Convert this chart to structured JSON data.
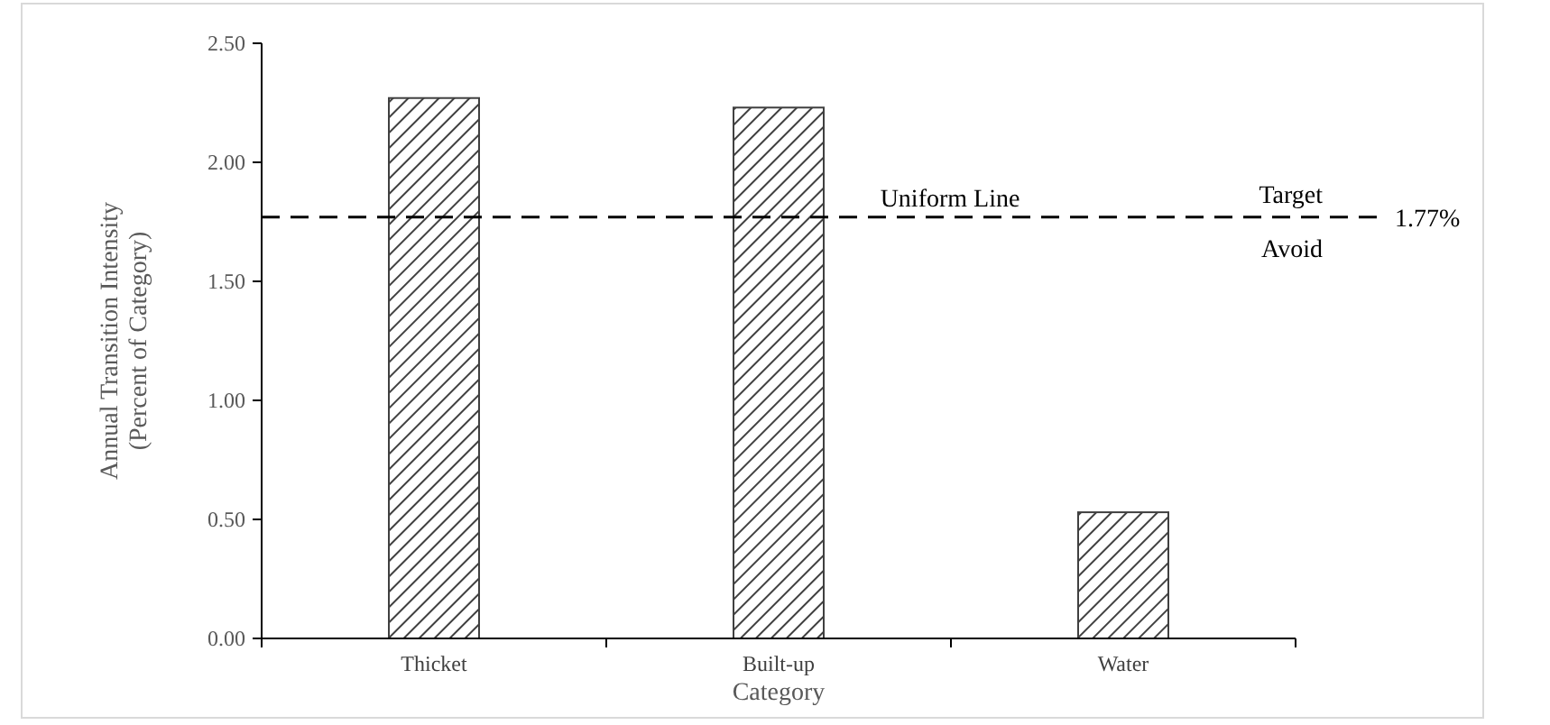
{
  "chart_data": {
    "type": "bar",
    "xlabel": "Category",
    "ylabel": "Annual Transition Intensity\n(Percent of Category)",
    "categories": [
      "Thicket",
      "Built-up",
      "Water"
    ],
    "values": [
      2.27,
      2.23,
      0.53
    ],
    "color": "#404040",
    "ylim": [
      0,
      2.5
    ],
    "yticks": [
      {
        "value": 0,
        "label": "0.00"
      },
      {
        "value": 0.5,
        "label": "0.50"
      },
      {
        "value": 1,
        "label": "1.00"
      },
      {
        "value": 1.5,
        "label": "1.50"
      },
      {
        "value": 2,
        "label": "2.00"
      },
      {
        "value": 2.5,
        "label": "2.50"
      }
    ],
    "ref_lines": [
      {
        "axis": "y",
        "value": 1.77,
        "label": "Uniform Line",
        "line_style": "dashed",
        "color": "#000000"
      }
    ],
    "annotations": [
      "Target",
      "Avoid",
      "1.77%"
    ]
  }
}
